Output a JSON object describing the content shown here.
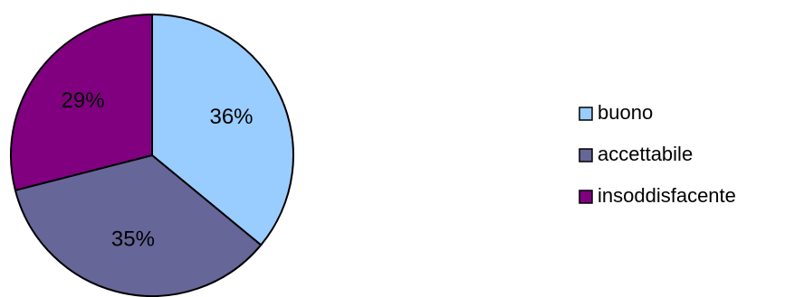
{
  "chart_data": {
    "type": "pie",
    "title": "",
    "categories": [
      "buono",
      "accettabile",
      "insoddisfacente"
    ],
    "values": [
      36,
      35,
      29
    ],
    "value_labels": [
      "36%",
      "35%",
      "29%"
    ],
    "colors": [
      "#99ccff",
      "#666699",
      "#800080"
    ],
    "start_angle_deg": 0,
    "direction": "clockwise",
    "legend": {
      "position": "right",
      "items": [
        {
          "label": "buono",
          "color": "#99ccff"
        },
        {
          "label": "accettabile",
          "color": "#666699"
        },
        {
          "label": "insoddisfacente",
          "color": "#800080"
        }
      ]
    }
  }
}
